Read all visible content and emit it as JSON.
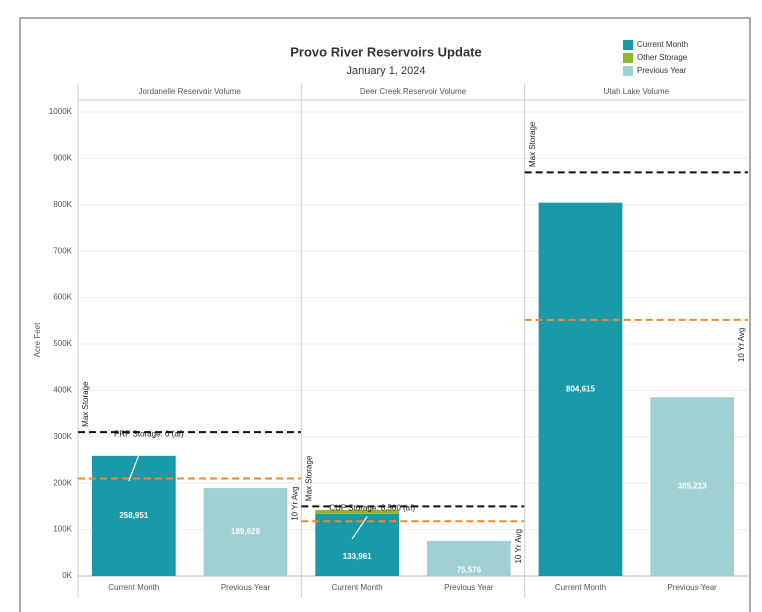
{
  "chart_data": {
    "type": "bar",
    "title": "Provo River Reservoirs Update",
    "subtitle": "January 1, 2024",
    "y_axis_label": "Acre Feet",
    "ylim": [
      0,
      1000000
    ],
    "yticks": [
      {
        "value": 0,
        "label": "0K"
      },
      {
        "value": 100000,
        "label": "100K"
      },
      {
        "value": 200000,
        "label": "200K"
      },
      {
        "value": 300000,
        "label": "300K"
      },
      {
        "value": 400000,
        "label": "400K"
      },
      {
        "value": 500000,
        "label": "500K"
      },
      {
        "value": 600000,
        "label": "600K"
      },
      {
        "value": 700000,
        "label": "700K"
      },
      {
        "value": 800000,
        "label": "800K"
      },
      {
        "value": 900000,
        "label": "900K"
      },
      {
        "value": 1000000,
        "label": "1000K"
      }
    ],
    "grid": true,
    "legend_position": "top-right",
    "series": [
      {
        "name": "Current Month",
        "color": "#1a9aa8"
      },
      {
        "name": "Other Storage",
        "color": "#8db92e"
      },
      {
        "name": "Previous Year",
        "color": "#9fd1d3"
      }
    ],
    "panels": [
      {
        "title": "Jordanelle Reservoir Volume",
        "categories": [
          "Current Month",
          "Previous Year"
        ],
        "values": [
          258951,
          189629
        ],
        "value_labels": [
          "258,951",
          "189,629"
        ],
        "other_storage": 0,
        "annotation": "PRP Storage: 0 (af)",
        "max_storage": 310000,
        "max_storage_label": "Max Storage",
        "ten_year_avg": 210000,
        "ten_year_avg_label": "10 Yr Avg"
      },
      {
        "title": "Deer Creek Reservoir Volume",
        "categories": [
          "Current Month",
          "Previous Year"
        ],
        "values": [
          133961,
          75576
        ],
        "value_labels": [
          "133,961",
          "75,576"
        ],
        "other_storage": 8500,
        "annotation": "CUP Storage: 8,500 (af)",
        "max_storage": 150000,
        "max_storage_label": "Max Storage",
        "ten_year_avg": 118000,
        "ten_year_avg_label": "10 Yr Avg"
      },
      {
        "title": "Utah Lake Volume",
        "categories": [
          "Current Month",
          "Previous Year"
        ],
        "values": [
          804615,
          385213
        ],
        "value_labels": [
          "804,615",
          "385,213"
        ],
        "max_storage": 870000,
        "max_storage_label": "Max Storage",
        "ten_year_avg": 552000,
        "ten_year_avg_label": "10 Yr Avg"
      }
    ]
  }
}
